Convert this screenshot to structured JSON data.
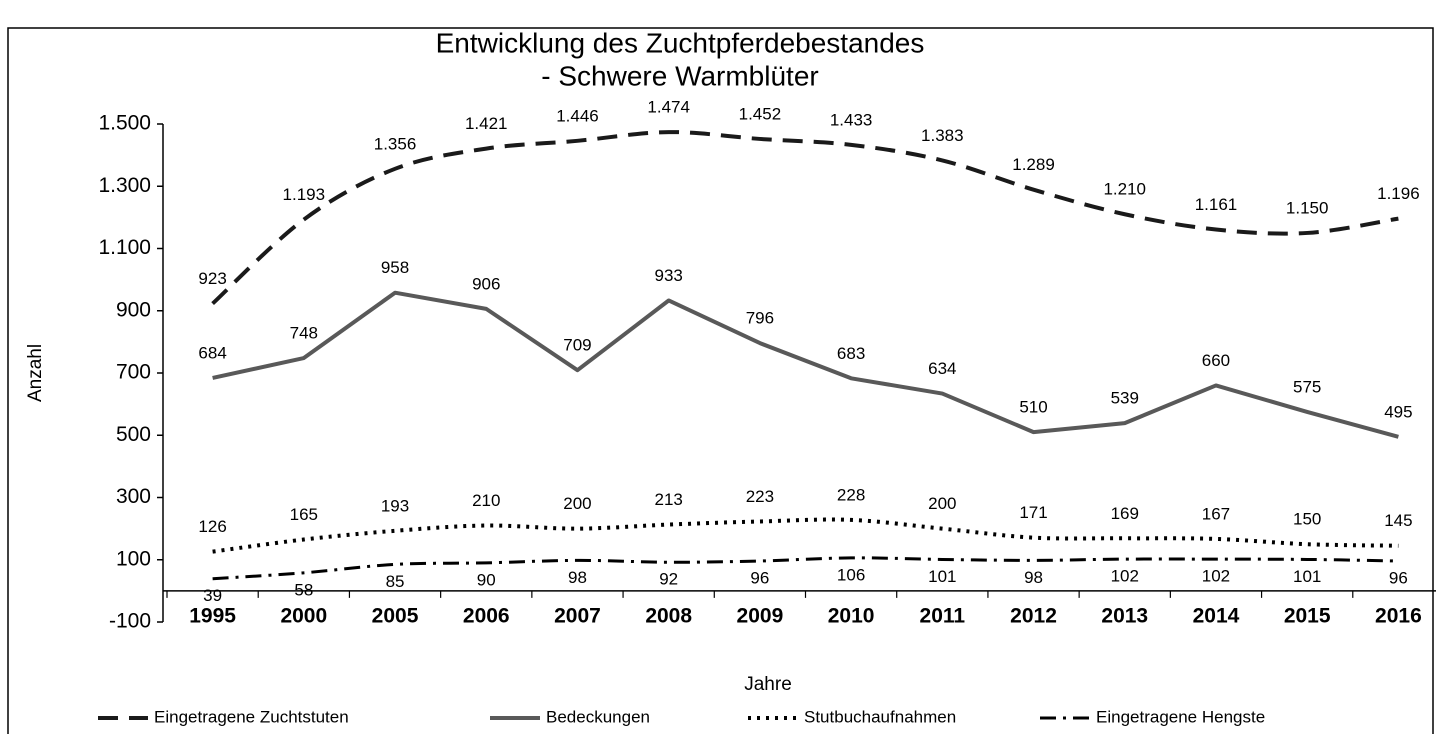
{
  "chart_data": {
    "type": "line",
    "title": [
      "Entwicklung des Zuchtpferdebestandes",
      "- Schwere Warmblüter"
    ],
    "x_label": "Jahre",
    "y_label": "Anzahl",
    "categories": [
      "1995",
      "2000",
      "2005",
      "2006",
      "2007",
      "2008",
      "2009",
      "2010",
      "2011",
      "2012",
      "2013",
      "2014",
      "2015",
      "2016"
    ],
    "series": [
      {
        "name": "Eingetragene Zuchtstuten",
        "color": "#1a1a1a",
        "values": [
          923,
          1193,
          1356,
          1421,
          1446,
          1474,
          1452,
          1433,
          1383,
          1289,
          1210,
          1161,
          1150,
          1196
        ],
        "value_labels": [
          "923",
          "1.193",
          "1.356",
          "1.421",
          "1.446",
          "1.474",
          "1.452",
          "1.433",
          "1.383",
          "1.289",
          "1.210",
          "1.161",
          "1.150",
          "1.196"
        ]
      },
      {
        "name": "Bedeckungen",
        "color": "#595959",
        "values": [
          684,
          748,
          958,
          906,
          709,
          933,
          796,
          683,
          634,
          510,
          539,
          660,
          575,
          495
        ]
      },
      {
        "name": "Stutbuchaufnahmen",
        "color": "#000000",
        "values": [
          126,
          165,
          193,
          210,
          200,
          213,
          223,
          228,
          200,
          171,
          169,
          167,
          150,
          145
        ]
      },
      {
        "name": "Eingetragene Hengste",
        "color": "#000000",
        "values": [
          39,
          58,
          85,
          90,
          98,
          92,
          96,
          106,
          101,
          98,
          102,
          102,
          101,
          96
        ]
      }
    ],
    "ylim": [
      -100,
      1500
    ],
    "yticks": [
      {
        "value": -100,
        "label": "-100"
      },
      100,
      300,
      500,
      700,
      900,
      {
        "value": 1100,
        "label": "1.100"
      },
      {
        "value": 1300,
        "label": "1.300"
      },
      {
        "value": 1500,
        "label": "1.500"
      }
    ],
    "grid": false,
    "legend": "bottom"
  }
}
